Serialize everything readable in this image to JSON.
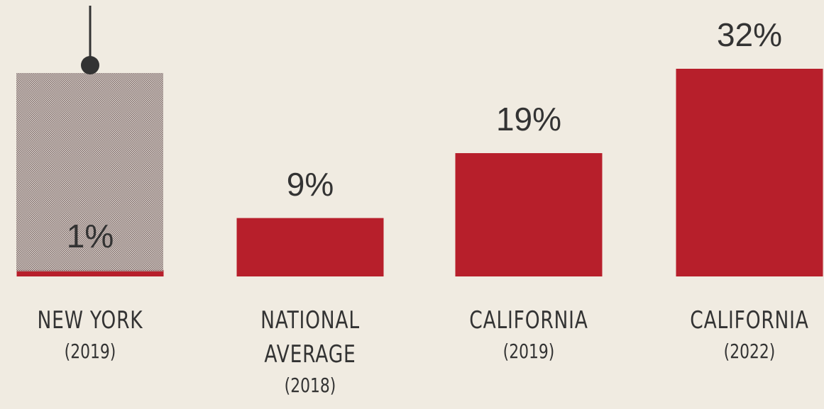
{
  "chart_data": {
    "type": "bar",
    "categories": [
      "NEW YORK",
      "NATIONAL AVERAGE",
      "CALIFORNIA",
      "CALIFORNIA"
    ],
    "sublabels": [
      "(2019)",
      "(2018)",
      "(2019)",
      "(2022)"
    ],
    "values": [
      1,
      9,
      19,
      32
    ],
    "value_labels": [
      "1%",
      "9%",
      "19%",
      "32%"
    ],
    "color": "#b71f2b",
    "ylim": [
      0,
      32
    ]
  }
}
